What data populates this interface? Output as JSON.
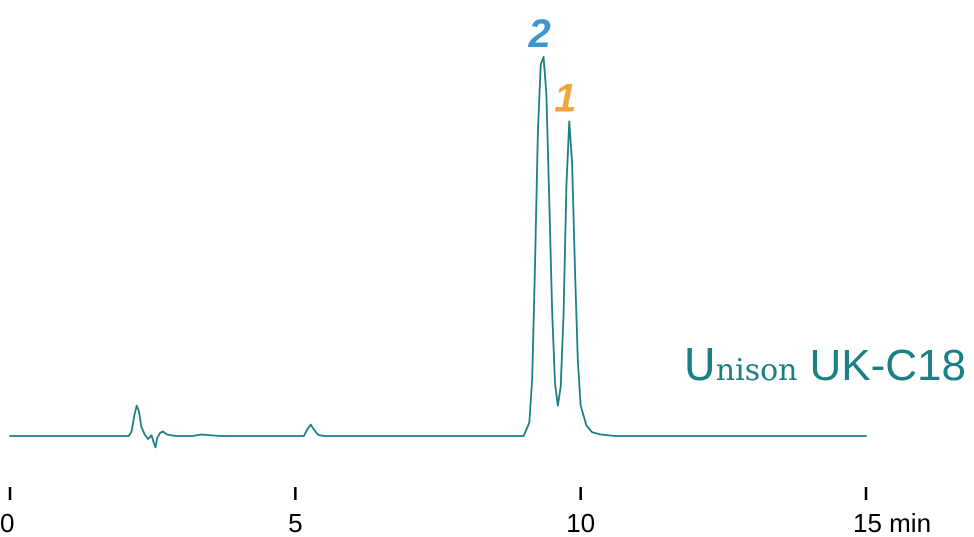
{
  "chart_data": {
    "type": "line",
    "xlabel": "",
    "ylabel": "",
    "xlim": [
      0,
      15
    ],
    "x_ticks": [
      0,
      5,
      10,
      15
    ],
    "x_tick_labels": [
      "0",
      "5",
      "10",
      "15 min"
    ],
    "grid": false,
    "line_color": "#1a7f86",
    "series": [
      {
        "x": [
          0.0,
          2.08,
          2.13,
          2.18,
          2.22,
          2.26,
          2.3,
          2.36,
          2.42,
          2.48,
          2.52,
          2.55,
          2.58,
          2.63,
          2.68,
          2.75,
          2.9,
          3.2,
          3.35,
          3.5,
          3.7,
          4.2,
          5.15,
          5.21,
          5.27,
          5.33,
          5.4,
          5.5,
          9.0,
          9.1,
          9.15,
          9.2,
          9.25,
          9.3,
          9.35,
          9.4,
          9.45,
          9.5,
          9.55,
          9.6,
          9.65,
          9.7,
          9.75,
          9.8,
          9.85,
          9.9,
          9.95,
          10.0,
          10.1,
          10.2,
          10.35,
          10.6,
          15.0
        ],
        "y": [
          0.0,
          0.0,
          0.012,
          0.055,
          0.08,
          0.065,
          0.025,
          0.004,
          -0.008,
          0.002,
          -0.018,
          -0.03,
          -0.005,
          0.008,
          0.012,
          0.004,
          0.0,
          0.0,
          0.004,
          0.002,
          0.0,
          0.0,
          0.0,
          0.018,
          0.03,
          0.016,
          0.003,
          0.0,
          0.0,
          0.035,
          0.15,
          0.45,
          0.8,
          0.98,
          1.0,
          0.9,
          0.62,
          0.33,
          0.14,
          0.08,
          0.13,
          0.32,
          0.66,
          0.83,
          0.72,
          0.44,
          0.2,
          0.08,
          0.028,
          0.01,
          0.004,
          0.0,
          0.0
        ]
      }
    ],
    "annotations": [
      {
        "text": "2",
        "x": 9.35,
        "color": "#3d96d2"
      },
      {
        "text": "1",
        "x": 9.8,
        "color": "#f2a33a"
      }
    ]
  },
  "column_label": {
    "brand_initial": "U",
    "brand_rest": "nison",
    "model": "UK-C18",
    "color": "#1a7f86"
  }
}
